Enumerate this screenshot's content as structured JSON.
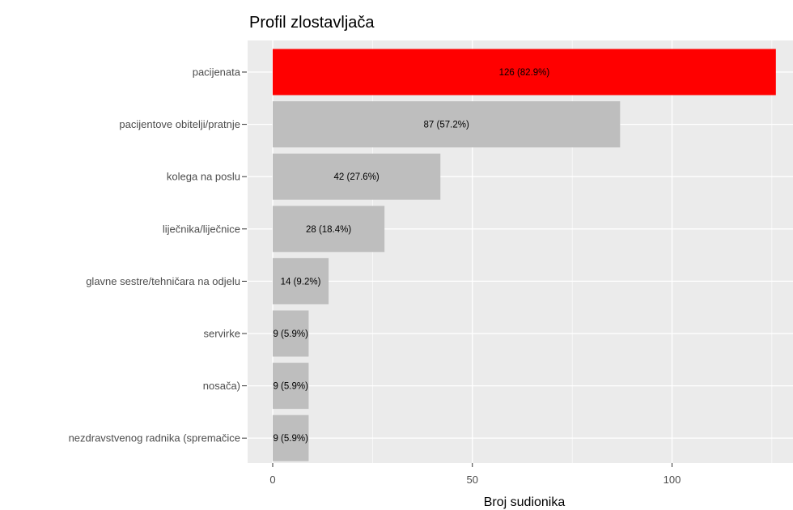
{
  "chart_data": {
    "type": "bar",
    "orientation": "horizontal",
    "title": "Profil zlostavljača",
    "xlabel": "Broj sudionika",
    "ylabel": "",
    "xlim": [
      0,
      129
    ],
    "x_ticks": [
      0,
      50,
      100
    ],
    "grid": true,
    "categories": [
      "pacijenata",
      "pacijentove obitelji/pratnje",
      "kolega na poslu",
      "liječnika/liječnice",
      "glavne sestre/tehničara na odjelu",
      "servirke",
      "nosača)",
      "nezdravstvenog radnika (spremačice"
    ],
    "values": [
      126,
      87,
      42,
      28,
      14,
      9,
      9,
      9
    ],
    "value_labels": [
      "126 (82.9%)",
      "87 (57.2%)",
      "42 (27.6%)",
      "28 (18.4%)",
      "14 (9.2%)",
      "9 (5.9%)",
      "9 (5.9%)",
      "9 (5.9%)"
    ],
    "highlight_index": 0,
    "colors": {
      "highlight": "#ff0000",
      "bar": "#bebebe",
      "panel": "#ebebeb",
      "grid": "#ffffff"
    }
  }
}
